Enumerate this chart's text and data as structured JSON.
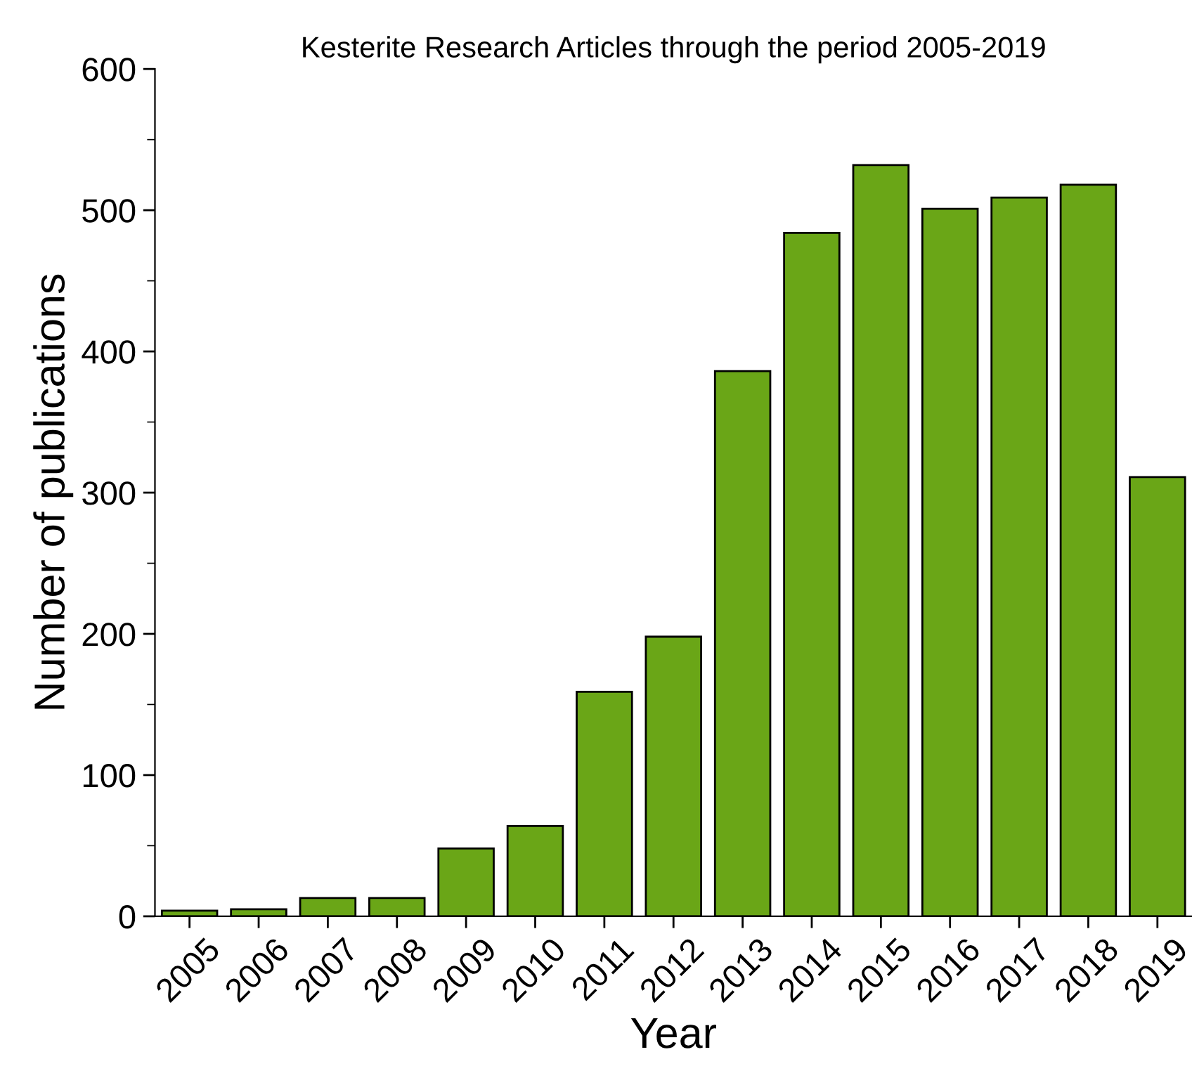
{
  "chart_data": {
    "type": "bar",
    "title": "Kesterite Research Articles through the period 2005-2019",
    "xlabel": "Year",
    "ylabel": "Number of publications",
    "categories": [
      "2005",
      "2006",
      "2007",
      "2008",
      "2009",
      "2010",
      "2011",
      "2012",
      "2013",
      "2014",
      "2015",
      "2016",
      "2017",
      "2018",
      "2019"
    ],
    "values": [
      4,
      5,
      13,
      13,
      48,
      64,
      159,
      198,
      386,
      484,
      532,
      501,
      509,
      518,
      311
    ],
    "color": "#6aa617",
    "ylim": [
      0,
      600
    ],
    "yticks": [
      0,
      100,
      200,
      300,
      400,
      500,
      600
    ],
    "grid": false,
    "legend": false
  }
}
